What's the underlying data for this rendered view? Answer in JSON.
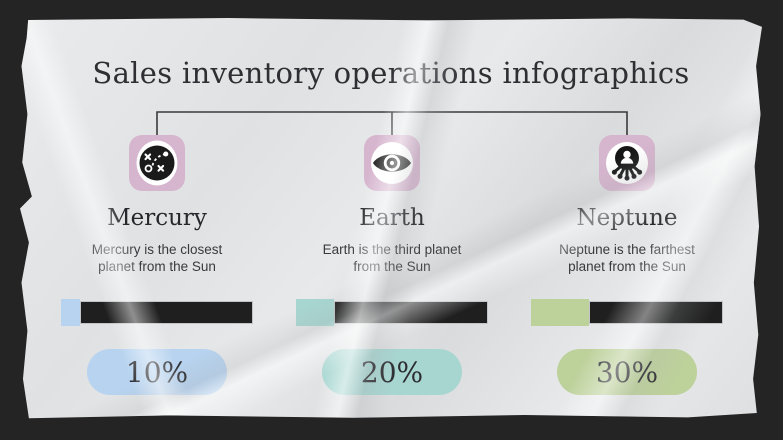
{
  "slide": {
    "title": "Sales inventory operations infographics",
    "columns": [
      {
        "name": "Mercury",
        "description": "Mercury is the closest planet from the Sun",
        "icon": "strategy-icon",
        "percent": 10,
        "percent_label": "10%",
        "accent_color": "#b7d3ef"
      },
      {
        "name": "Earth",
        "description": "Earth is the third planet from the Sun",
        "icon": "eye-icon",
        "percent": 20,
        "percent_label": "20%",
        "accent_color": "#a7d6d1"
      },
      {
        "name": "Neptune",
        "description": "Neptune is the farthest planet from the Sun",
        "icon": "network-icon",
        "percent": 30,
        "percent_label": "30%",
        "accent_color": "#bdd19b"
      }
    ],
    "colors": {
      "frame_background": "#242424",
      "paper": "#e2e4e6",
      "bar_track": "#1f1f1f",
      "icon_background": "#d6b5ce",
      "connector_line": "#3a3a3a"
    }
  }
}
